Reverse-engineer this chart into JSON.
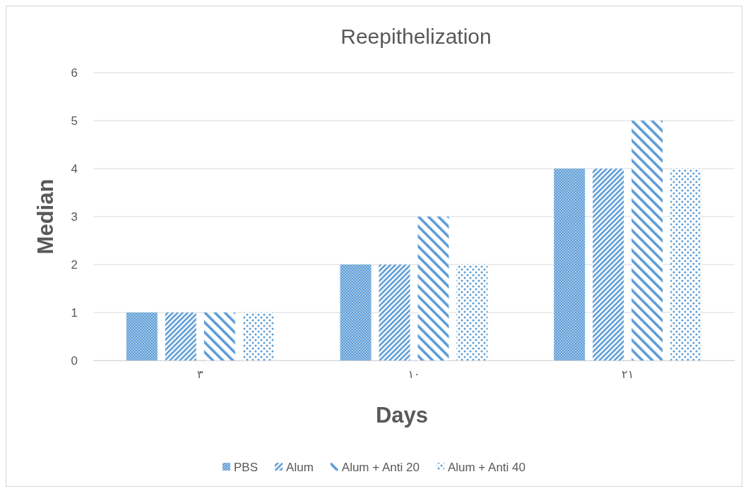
{
  "chart_data": {
    "type": "bar",
    "title": "Reepithelization",
    "xlabel": "Days",
    "ylabel": "Median",
    "categories": [
      "٣",
      "١٠",
      "٢١"
    ],
    "series": [
      {
        "name": "PBS",
        "color": "#5b9bd5",
        "values": [
          1,
          2,
          4
        ]
      },
      {
        "name": "Alum",
        "color": "#5b9bd5",
        "values": [
          1,
          2,
          4
        ]
      },
      {
        "name": "Alum + Anti 20",
        "color": "#5b9bd5",
        "values": [
          1,
          3,
          5
        ]
      },
      {
        "name": "Alum + Anti 40",
        "color": "#5b9bd5",
        "values": [
          1,
          2,
          4
        ]
      }
    ],
    "ylim": [
      0,
      6
    ],
    "yticks": [
      0,
      1,
      2,
      3,
      4,
      5,
      6
    ],
    "grid": "y",
    "legend": "bottom"
  }
}
